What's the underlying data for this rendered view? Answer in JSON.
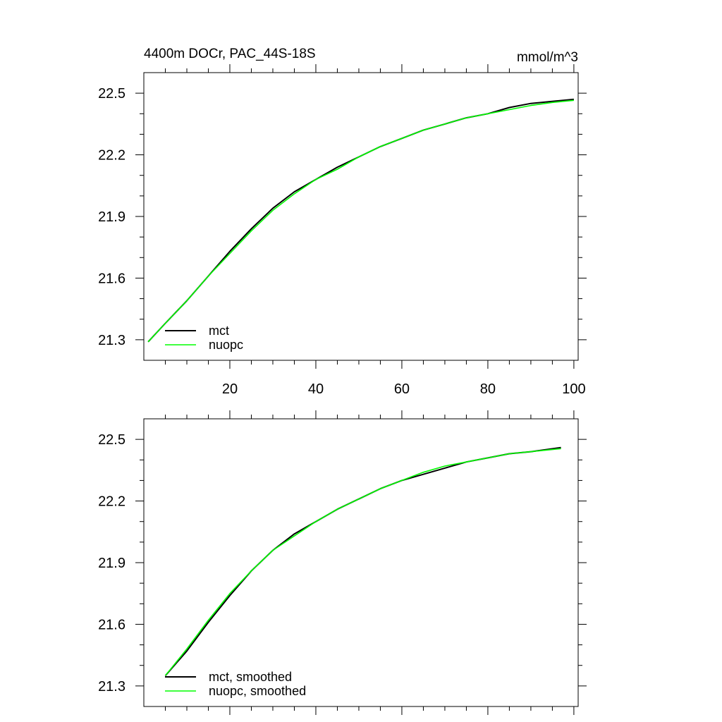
{
  "chart_data": [
    {
      "type": "line",
      "title": "4400m DOCr, PAC_44S-18S",
      "units": "mmol/m^3",
      "xlim": [
        0,
        101
      ],
      "ylim": [
        21.2,
        22.6
      ],
      "xticks": [
        20,
        40,
        60,
        80,
        100
      ],
      "yticks": [
        21.3,
        21.6,
        21.9,
        22.2,
        22.5
      ],
      "xtick_labels_shown": true,
      "grid": false,
      "legend_placement": "bottom-left",
      "series": [
        {
          "name": "mct",
          "color": "#000000",
          "x": [
            1,
            5,
            10,
            15,
            20,
            25,
            30,
            35,
            40,
            45,
            50,
            55,
            60,
            65,
            70,
            75,
            80,
            85,
            90,
            95,
            100
          ],
          "y": [
            21.29,
            21.38,
            21.49,
            21.61,
            21.73,
            21.84,
            21.94,
            22.02,
            22.08,
            22.14,
            22.19,
            22.24,
            22.28,
            22.32,
            22.35,
            22.38,
            22.4,
            22.43,
            22.45,
            22.46,
            22.47
          ]
        },
        {
          "name": "nuopc",
          "color": "#00ff00",
          "x": [
            1,
            5,
            10,
            15,
            20,
            25,
            30,
            35,
            40,
            45,
            50,
            55,
            60,
            65,
            70,
            75,
            80,
            85,
            90,
            95,
            100
          ],
          "y": [
            21.29,
            21.38,
            21.49,
            21.61,
            21.72,
            21.83,
            21.93,
            22.01,
            22.08,
            22.13,
            22.19,
            22.24,
            22.28,
            22.32,
            22.35,
            22.38,
            22.4,
            22.42,
            22.44,
            22.455,
            22.465
          ]
        }
      ]
    },
    {
      "type": "line",
      "title": "",
      "xlim": [
        0,
        101
      ],
      "ylim": [
        21.2,
        22.6
      ],
      "xticks": [
        20,
        40,
        60,
        80,
        100
      ],
      "yticks": [
        21.3,
        21.6,
        21.9,
        22.2,
        22.5
      ],
      "xtick_labels_shown": false,
      "grid": false,
      "legend_placement": "bottom-left",
      "series": [
        {
          "name": "mct, smoothed",
          "color": "#000000",
          "x": [
            5,
            10,
            15,
            20,
            25,
            30,
            35,
            40,
            45,
            50,
            55,
            60,
            65,
            70,
            75,
            80,
            85,
            90,
            97
          ],
          "y": [
            21.35,
            21.47,
            21.61,
            21.74,
            21.86,
            21.96,
            22.04,
            22.1,
            22.16,
            22.21,
            22.26,
            22.3,
            22.33,
            22.36,
            22.39,
            22.41,
            22.43,
            22.44,
            22.46
          ]
        },
        {
          "name": "nuopc, smoothed",
          "color": "#00ff00",
          "x": [
            5,
            10,
            15,
            20,
            25,
            30,
            35,
            40,
            45,
            50,
            55,
            60,
            65,
            70,
            75,
            80,
            85,
            90,
            97
          ],
          "y": [
            21.35,
            21.48,
            21.62,
            21.75,
            21.86,
            21.96,
            22.03,
            22.1,
            22.16,
            22.21,
            22.26,
            22.3,
            22.34,
            22.37,
            22.39,
            22.41,
            22.43,
            22.44,
            22.455
          ]
        }
      ]
    }
  ]
}
